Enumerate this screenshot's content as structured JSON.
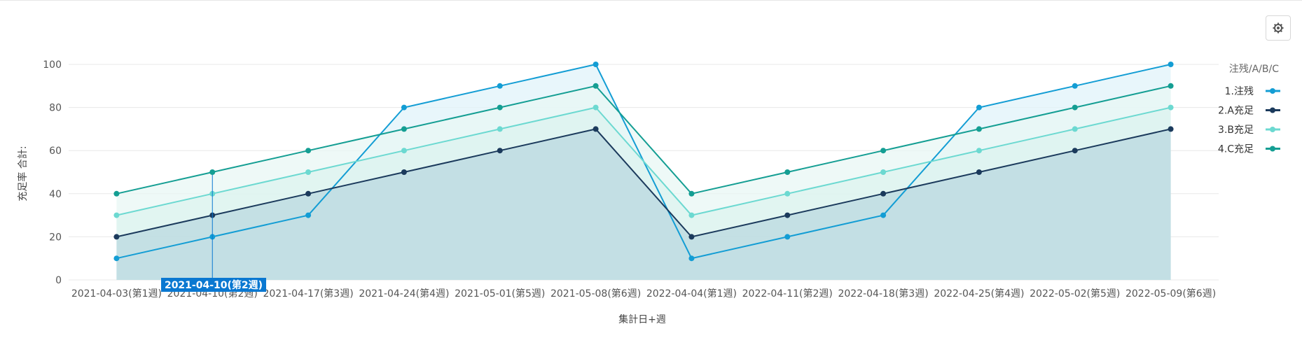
{
  "settings": {
    "icon": "gear-icon"
  },
  "chart_data": {
    "type": "area",
    "xlabel": "集計日+週",
    "ylabel": "充足率 合計:",
    "yticks": [
      0,
      20,
      40,
      60,
      80,
      100
    ],
    "ylim": [
      0,
      100
    ],
    "grid": true,
    "legend": {
      "title": "注残/A/B/C",
      "placement": "right"
    },
    "categories": [
      "2021-04-03(第1週)",
      "2021-04-10(第2週)",
      "2021-04-17(第3週)",
      "2021-04-24(第4週)",
      "2021-05-01(第5週)",
      "2021-05-08(第6週)",
      "2022-04-04(第1週)",
      "2022-04-11(第2週)",
      "2022-04-18(第3週)",
      "2022-04-25(第4週)",
      "2022-05-02(第5週)",
      "2022-05-09(第6週)"
    ],
    "series": [
      {
        "name": "1.注残",
        "color": "#139dd4",
        "fill": "#e0f3fa",
        "values": [
          10,
          20,
          30,
          80,
          90,
          100,
          10,
          20,
          30,
          80,
          90,
          100
        ]
      },
      {
        "name": "2.A充足",
        "color": "#1b3a5c",
        "fill": "#b9d8df",
        "values": [
          20,
          30,
          40,
          50,
          60,
          70,
          20,
          30,
          40,
          50,
          60,
          70
        ]
      },
      {
        "name": "3.B充足",
        "color": "#6cd9d1",
        "fill": "#dcf3ef",
        "values": [
          30,
          40,
          50,
          60,
          70,
          80,
          30,
          40,
          50,
          60,
          70,
          80
        ]
      },
      {
        "name": "4.C充足",
        "color": "#149e93",
        "fill": "#e8f7f4",
        "values": [
          40,
          50,
          60,
          70,
          80,
          90,
          40,
          50,
          60,
          70,
          80,
          90
        ]
      }
    ],
    "fill_order": [
      "1.注残",
      "4.C充足",
      "3.B充足",
      "2.A充足"
    ],
    "tooltip": {
      "category_index": 1,
      "text": "2021-04-10(第2週)",
      "color": "#0a78d1"
    }
  }
}
